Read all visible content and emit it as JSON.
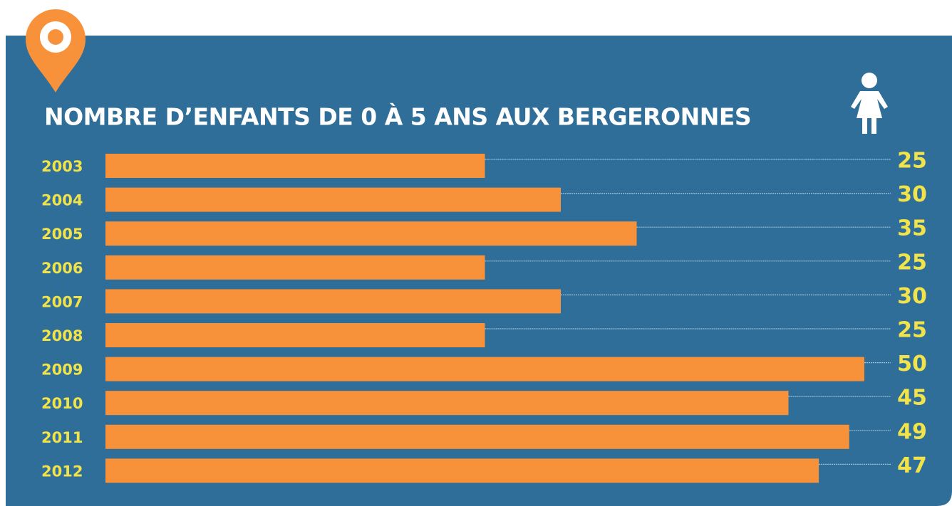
{
  "chart_data": {
    "type": "bar",
    "orientation": "horizontal",
    "title": "NOMBRE D’ENFANTS DE 0 À 5 ANS AUX BERGERONNES",
    "categories": [
      "2003",
      "2004",
      "2005",
      "2006",
      "2007",
      "2008",
      "2009",
      "2010",
      "2011",
      "2012"
    ],
    "values": [
      25,
      30,
      35,
      25,
      30,
      25,
      50,
      45,
      49,
      47
    ],
    "color": "#f7923a"
  }
}
